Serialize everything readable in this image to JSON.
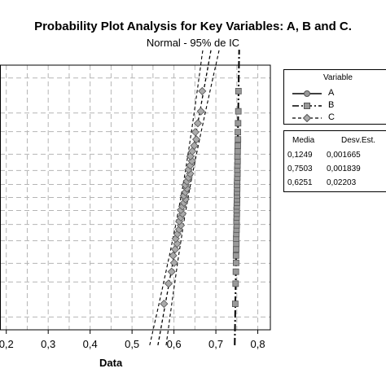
{
  "chart_data": {
    "type": "scatter",
    "title": "Probability Plot Analysis for Key Variables: A, B and C.",
    "subtitle": "Normal - 95% de IC",
    "xlabel": "Data",
    "ylabel": "",
    "x_ticks": [
      "0,2",
      "0,3",
      "0,4",
      "0,5",
      "0,6",
      "0,7",
      "0,8"
    ],
    "x_tick_values": [
      0.2,
      0.3,
      0.4,
      0.5,
      0.6,
      0.7,
      0.8
    ],
    "xlim": [
      0.185,
      0.83
    ],
    "ylim": [
      0.5,
      99.5
    ],
    "y_gridlines_percent": [
      1,
      5,
      10,
      20,
      30,
      40,
      50,
      60,
      70,
      80,
      90,
      95,
      99
    ],
    "grid": true,
    "legend_title": "Variable",
    "legend_placement": "right",
    "series": [
      {
        "name": "A",
        "mean": 0.1249,
        "stdev": 0.001665,
        "style": "solid",
        "marker": "circle",
        "color": "#888888"
      },
      {
        "name": "B",
        "mean": 0.7503,
        "stdev": 0.001839,
        "style": "dash-dot",
        "marker": "square",
        "color": "#888888"
      },
      {
        "name": "C",
        "mean": 0.6251,
        "stdev": 0.02203,
        "style": "dashed",
        "marker": "diamond",
        "color": "#999999"
      }
    ],
    "stats_table": {
      "headers": [
        "Media",
        "Desv.Est."
      ],
      "rows": [
        [
          "0,1249",
          "0,001665"
        ],
        [
          "0,7503",
          "0,001839"
        ],
        [
          "0,6251",
          "0,02203"
        ]
      ]
    }
  }
}
